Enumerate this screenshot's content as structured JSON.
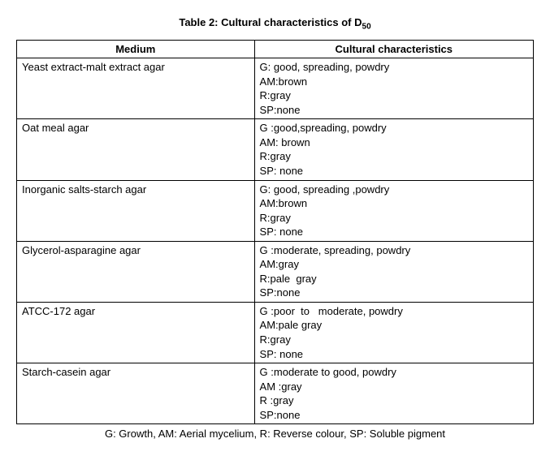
{
  "title_prefix": "Table 2: Cultural characteristics of D",
  "title_sub": "50",
  "columns": [
    "Medium",
    "Cultural characteristics"
  ],
  "rows": [
    {
      "medium": "Yeast extract-malt extract agar",
      "chars": [
        "G: good, spreading, powdry",
        "AM:brown",
        "R:gray",
        "SP:none"
      ]
    },
    {
      "medium": "Oat meal agar",
      "chars": [
        "G :good,spreading, powdry",
        "AM: brown",
        "R:gray",
        "SP: none"
      ]
    },
    {
      "medium": "Inorganic salts-starch agar",
      "chars": [
        "G: good, spreading ,powdry",
        "AM:brown",
        "R:gray",
        "SP: none"
      ]
    },
    {
      "medium": "Glycerol-asparagine agar",
      "chars": [
        "G :moderate, spreading, powdry",
        "AM:gray",
        "R:pale  gray",
        "SP:none"
      ]
    },
    {
      "medium": "ATCC-172 agar",
      "chars": [
        "G :poor  to   moderate, powdry",
        "AM:pale gray",
        "R:gray",
        "SP: none"
      ]
    },
    {
      "medium": "Starch-casein agar",
      "chars": [
        "G :moderate to good, powdry",
        "AM :gray",
        "R :gray",
        "SP:none"
      ]
    }
  ],
  "footnote": "G: Growth, AM: Aerial mycelium, R: Reverse colour, SP: Soluble pigment"
}
